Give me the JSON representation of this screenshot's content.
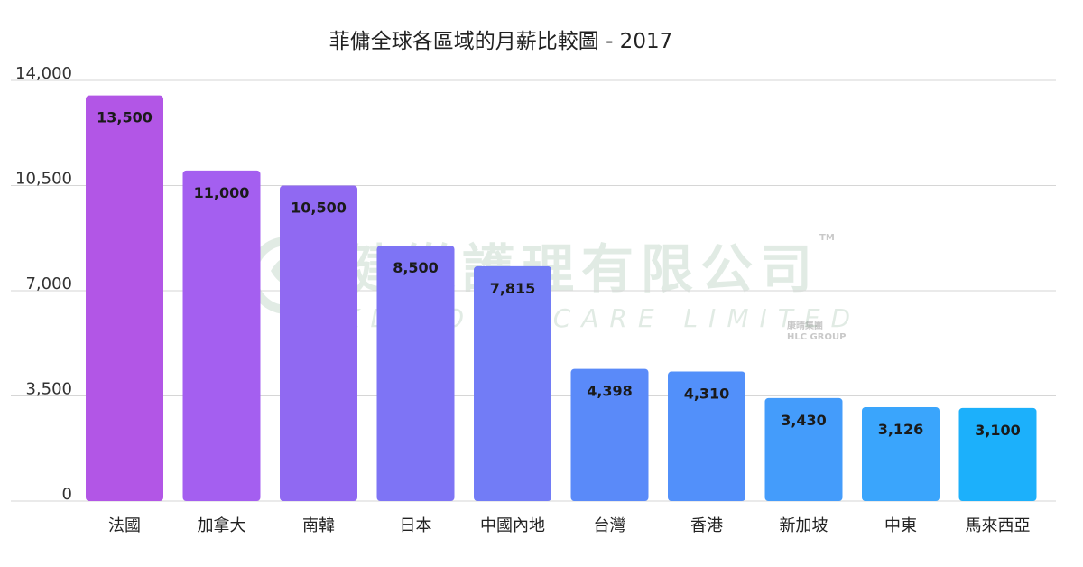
{
  "chart_data": {
    "type": "bar",
    "title": "菲傭全球各區域的月薪比較圖 - 2017",
    "xlabel": "",
    "ylabel": "",
    "categories": [
      "法國",
      "加拿大",
      "南韓",
      "日本",
      "中國內地",
      "台灣",
      "香港",
      "新加坡",
      "中東",
      "馬來西亞"
    ],
    "values": [
      13500,
      11000,
      10500,
      8500,
      7815,
      4398,
      4310,
      3430,
      3126,
      3100
    ],
    "value_labels": [
      "13,500",
      "11,000",
      "10,500",
      "8,500",
      "7,815",
      "4,398",
      "4,310",
      "3,430",
      "3,126",
      "3,100"
    ],
    "ylim": [
      0,
      14000
    ],
    "yticks": [
      0,
      3500,
      7000,
      10500,
      14000
    ],
    "ytick_labels": [
      "0",
      "3,500",
      "7,000",
      "10,500",
      "14,000"
    ],
    "grid": true,
    "bar_colors": [
      "#b256e6",
      "#a45ff0",
      "#9069f2",
      "#7e74f5",
      "#727cf6",
      "#5a8af9",
      "#5290fa",
      "#449cfb",
      "#3aa5fc",
      "#1cb0fb"
    ]
  },
  "watermark": {
    "chinese": "健樂護理有限公司",
    "english": "KL HOME CARE LIMITED",
    "tm": "TM",
    "group_cn": "康晴集團",
    "group_en": "HLC GROUP"
  }
}
